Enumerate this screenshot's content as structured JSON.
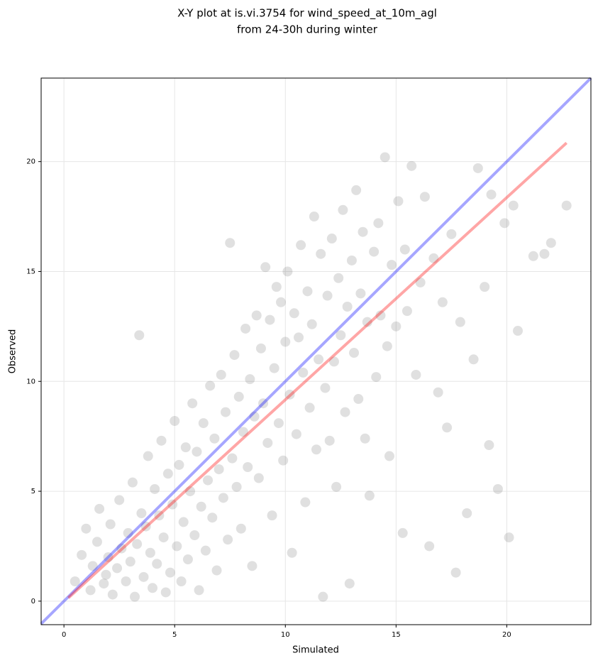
{
  "chart_data": {
    "type": "scatter",
    "title": "X-Y plot at is.vi.3754 for wind_speed_at_10m_agl",
    "subtitle": "from 24-30h during winter",
    "x_label": "Simulated",
    "y_label": "Observed",
    "xlim": [
      -1.03,
      23.8
    ],
    "ylim": [
      -1.07,
      23.8
    ],
    "xticks": [
      0,
      5,
      10,
      15,
      20
    ],
    "yticks": [
      0,
      5,
      10,
      15,
      20
    ],
    "grid": true,
    "x": [
      0.5,
      0.8,
      1.0,
      1.2,
      1.3,
      1.5,
      1.6,
      1.8,
      1.9,
      2.0,
      2.1,
      2.2,
      2.4,
      2.5,
      2.6,
      2.8,
      2.9,
      3.0,
      3.1,
      3.2,
      3.3,
      3.4,
      3.5,
      3.6,
      3.7,
      3.8,
      3.9,
      4.0,
      4.1,
      4.2,
      4.3,
      4.4,
      4.5,
      4.6,
      4.7,
      4.8,
      4.9,
      5.0,
      5.1,
      5.2,
      5.3,
      5.4,
      5.5,
      5.6,
      5.7,
      5.8,
      5.9,
      6.0,
      6.1,
      6.2,
      6.3,
      6.4,
      6.5,
      6.6,
      6.7,
      6.8,
      6.9,
      7.0,
      7.1,
      7.2,
      7.3,
      7.4,
      7.5,
      7.6,
      7.7,
      7.8,
      7.9,
      8.0,
      8.1,
      8.2,
      8.3,
      8.4,
      8.5,
      8.6,
      8.7,
      8.8,
      8.9,
      9.0,
      9.1,
      9.2,
      9.3,
      9.4,
      9.5,
      9.6,
      9.7,
      9.8,
      9.9,
      10.0,
      10.1,
      10.2,
      10.3,
      10.4,
      10.5,
      10.6,
      10.7,
      10.8,
      10.9,
      11.0,
      11.1,
      11.2,
      11.3,
      11.4,
      11.5,
      11.6,
      11.7,
      11.8,
      11.9,
      12.0,
      12.1,
      12.2,
      12.3,
      12.4,
      12.5,
      12.6,
      12.7,
      12.8,
      12.9,
      13.0,
      13.1,
      13.2,
      13.3,
      13.4,
      13.5,
      13.6,
      13.7,
      13.8,
      14.0,
      14.1,
      14.2,
      14.3,
      14.5,
      14.6,
      14.7,
      14.8,
      15.0,
      15.1,
      15.3,
      15.4,
      15.5,
      15.7,
      15.9,
      16.1,
      16.3,
      16.5,
      16.7,
      16.9,
      17.1,
      17.3,
      17.5,
      17.7,
      17.9,
      18.2,
      18.5,
      18.7,
      19.0,
      19.2,
      19.3,
      19.6,
      19.9,
      20.1,
      20.3,
      20.5,
      21.2,
      21.7,
      22.0,
      22.7
    ],
    "series": [
      {
        "color": "#555555",
        "values": [
          0.9,
          2.1,
          3.3,
          0.5,
          1.6,
          2.7,
          4.2,
          0.8,
          1.2,
          2.0,
          3.5,
          0.3,
          1.5,
          4.6,
          2.4,
          0.9,
          3.1,
          1.8,
          5.4,
          0.2,
          2.6,
          12.1,
          4.0,
          1.1,
          3.4,
          6.6,
          2.2,
          0.6,
          5.1,
          1.7,
          3.9,
          7.3,
          2.9,
          0.4,
          5.8,
          1.3,
          4.4,
          8.2,
          2.5,
          6.2,
          0.9,
          3.6,
          7.0,
          1.9,
          5.0,
          9.0,
          3.0,
          6.8,
          0.5,
          4.3,
          8.1,
          2.3,
          5.5,
          9.8,
          3.8,
          7.4,
          1.4,
          6.0,
          10.3,
          4.7,
          8.6,
          2.8,
          16.3,
          6.5,
          11.2,
          5.2,
          9.3,
          3.3,
          7.7,
          12.4,
          6.1,
          10.1,
          1.6,
          8.4,
          13.0,
          5.6,
          11.5,
          9.0,
          15.2,
          7.2,
          12.8,
          3.9,
          10.6,
          14.3,
          8.1,
          13.6,
          6.4,
          11.8,
          15.0,
          9.4,
          2.2,
          13.1,
          7.6,
          12.0,
          16.2,
          10.4,
          4.5,
          14.1,
          8.8,
          12.6,
          17.5,
          6.9,
          11.0,
          15.8,
          0.2,
          9.7,
          13.9,
          7.3,
          16.5,
          10.9,
          5.2,
          14.7,
          12.1,
          17.8,
          8.6,
          13.4,
          0.8,
          15.5,
          11.3,
          18.7,
          9.2,
          14.0,
          16.8,
          7.4,
          12.7,
          4.8,
          15.9,
          10.2,
          17.2,
          13.0,
          20.2,
          11.6,
          6.6,
          15.3,
          12.5,
          18.2,
          3.1,
          16.0,
          13.2,
          19.8,
          10.3,
          14.5,
          18.4,
          2.5,
          15.6,
          9.5,
          13.6,
          7.9,
          16.7,
          1.3,
          12.7,
          4.0,
          11.0,
          19.7,
          14.3,
          7.1,
          18.5,
          5.1,
          17.2,
          2.9,
          18.0,
          12.3,
          15.7,
          15.8,
          16.3,
          18.0
        ]
      }
    ],
    "lines": [
      {
        "color": "#0000ff",
        "x": [
          -1.03,
          23.8
        ],
        "values": [
          -1.03,
          23.8
        ]
      },
      {
        "color": "#ff0000",
        "x": [
          0.2,
          22.7
        ],
        "values": [
          0.15,
          20.85
        ]
      }
    ]
  }
}
